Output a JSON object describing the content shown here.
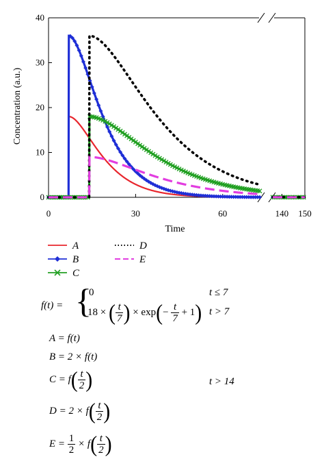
{
  "chart_data": {
    "type": "line",
    "ylabel": "Concentration (a.u.)",
    "xlabel": "Time",
    "ylim": [
      0,
      40
    ],
    "xlim_left": [
      0,
      73
    ],
    "xlim_right": [
      136,
      150
    ],
    "x_ticks_left": [
      0,
      30,
      60
    ],
    "x_ticks_right": [
      140,
      150
    ],
    "y_ticks": [
      0,
      10,
      20,
      30,
      40
    ],
    "axis_break": true,
    "grid": false,
    "legend_position": "bottom-left",
    "series": [
      {
        "name": "A",
        "color": "#e8262d",
        "style": "solid",
        "marker": "none",
        "formula": "f(t)"
      },
      {
        "name": "B",
        "color": "#1f2fd6",
        "style": "solid",
        "marker": "diamond",
        "formula": "2 f(t)"
      },
      {
        "name": "C",
        "color": "#22a023",
        "style": "solid",
        "marker": "x",
        "formula": "f(t/2)"
      },
      {
        "name": "D",
        "color": "#000000",
        "style": "dotted",
        "marker": "none",
        "formula": "2 f(t/2)"
      },
      {
        "name": "E",
        "color": "#e23de0",
        "style": "dashed",
        "marker": "none",
        "formula": "0.5 f(t/2)"
      }
    ]
  },
  "legend": {
    "a": "A",
    "b": "B",
    "c": "C",
    "d": "D",
    "e": "E"
  },
  "formulas": {
    "f_lhs": "f(t) =",
    "case1_val": "0",
    "case1_cond": "t ≤ 7",
    "case2_coef": "18 ×",
    "case2_frac_num": "t",
    "case2_frac_den": "7",
    "case2_mid": "× exp",
    "case2_minus": "−",
    "case2_plus": "+ 1",
    "case2_cond": "t > 7",
    "a_def": "A = f(t)",
    "b_def": "B = 2 × f(t)",
    "c_lhs": "C = f",
    "c_cond": "t > 14",
    "d_lhs": "D = 2 × f",
    "e_lhs_eq": "E =",
    "e_half_num": "1",
    "e_half_den": "2",
    "e_times_f": "× f",
    "frac2_num": "t",
    "frac2_den": "2"
  }
}
